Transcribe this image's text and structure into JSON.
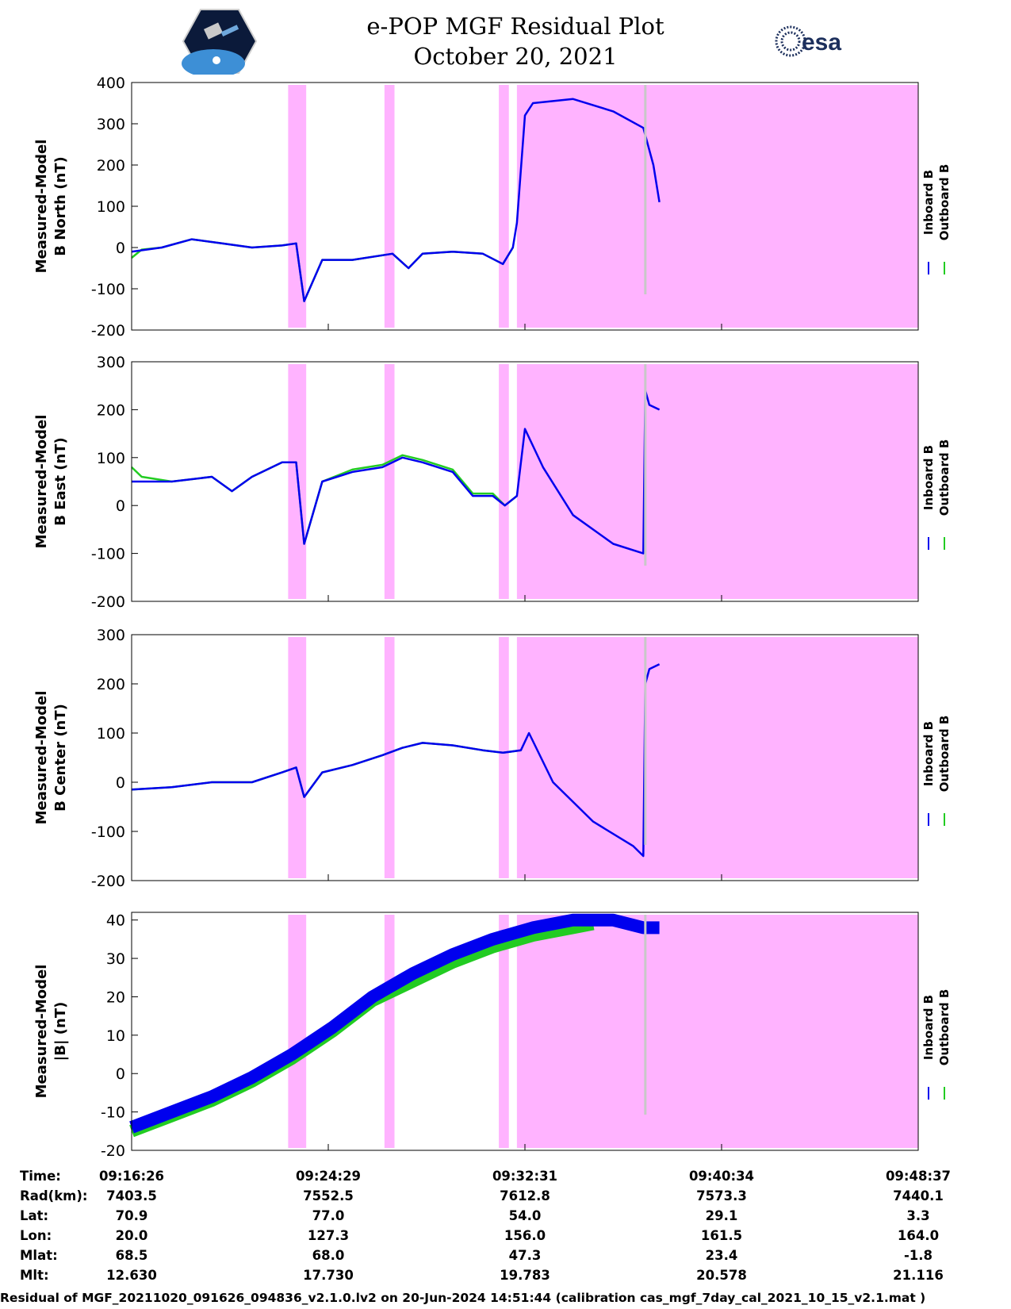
{
  "title": "e-POP MGF Residual Plot",
  "subtitle": "October 20, 2021",
  "logos": {
    "left": "cassiope-mission-logo",
    "right_text": "esa"
  },
  "colors": {
    "inboard": "#0000ee",
    "outboard": "#22cc22",
    "shade": "#ffb3ff",
    "gap_line": "#c8c8c8"
  },
  "chart_data": [
    {
      "type": "line",
      "ylabel": [
        "Measured-Model",
        "B North (nT)"
      ],
      "ylim": [
        -200,
        400
      ],
      "yticks": [
        -200,
        -100,
        0,
        100,
        200,
        300,
        400
      ],
      "legend": [
        "Inboard B",
        "Outboard B"
      ],
      "legend_placement": "right",
      "series": [
        {
          "name": "Inboard B",
          "x": [
            0,
            1.5,
            3,
            4.5,
            6,
            7.5,
            8.2,
            8.6,
            9.5,
            11,
            13,
            13.8,
            14.5,
            16,
            17.5,
            18.5,
            19,
            19.2,
            19.6,
            20,
            22,
            24,
            25.5,
            26,
            26.3
          ],
          "y": [
            -10,
            0,
            20,
            10,
            0,
            5,
            10,
            -130,
            -30,
            -30,
            -15,
            -50,
            -15,
            -10,
            -15,
            -40,
            0,
            60,
            320,
            350,
            360,
            330,
            290,
            200,
            110
          ]
        },
        {
          "name": "Outboard B",
          "x": [
            0,
            0.5,
            1.5,
            3,
            4.5,
            6,
            7.5,
            8.2,
            8.6,
            9.5,
            11,
            13,
            13.8,
            14.5,
            16,
            17.5,
            18.5,
            19
          ],
          "y": [
            -25,
            -5,
            0,
            20,
            10,
            0,
            5,
            10,
            -130,
            -30,
            -30,
            -15,
            -50,
            -15,
            -10,
            -15,
            -40,
            0
          ]
        }
      ]
    },
    {
      "type": "line",
      "ylabel": [
        "Measured-Model",
        "B East (nT)"
      ],
      "ylim": [
        -200,
        300
      ],
      "yticks": [
        -200,
        -100,
        0,
        100,
        200,
        300
      ],
      "legend": [
        "Inboard B",
        "Outboard B"
      ],
      "legend_placement": "right",
      "series": [
        {
          "name": "Inboard B",
          "x": [
            0,
            2,
            4,
            5,
            6,
            7.5,
            8.2,
            8.6,
            9.5,
            11,
            12.5,
            13.5,
            14.5,
            16,
            17,
            18,
            18.6,
            19.2,
            19.6,
            20.5,
            22,
            24,
            25.5,
            25.6,
            25.8,
            26.3
          ],
          "y": [
            50,
            50,
            60,
            30,
            60,
            90,
            90,
            -80,
            50,
            70,
            80,
            100,
            90,
            70,
            20,
            20,
            0,
            20,
            160,
            80,
            -20,
            -80,
            -100,
            240,
            210,
            200
          ]
        },
        {
          "name": "Outboard B",
          "x": [
            0,
            0.5,
            2,
            4,
            5,
            6,
            7.5,
            8.2,
            8.6,
            9.5,
            11,
            12.5,
            13.5,
            14.5,
            16,
            17,
            18,
            18.6,
            19.2
          ],
          "y": [
            80,
            60,
            50,
            60,
            30,
            60,
            90,
            90,
            -80,
            50,
            75,
            85,
            105,
            95,
            75,
            25,
            25,
            0,
            20
          ]
        }
      ]
    },
    {
      "type": "line",
      "ylabel": [
        "Measured-Model",
        "B Center (nT)"
      ],
      "ylim": [
        -200,
        300
      ],
      "yticks": [
        -200,
        -100,
        0,
        100,
        200,
        300
      ],
      "legend": [
        "Inboard B",
        "Outboard B"
      ],
      "legend_placement": "right",
      "series": [
        {
          "name": "Inboard B",
          "x": [
            0,
            2,
            4,
            6,
            7.5,
            8.2,
            8.6,
            9.5,
            11,
            12.5,
            13.5,
            14.5,
            16,
            17.5,
            18.5,
            19.4,
            19.8,
            21,
            23,
            25,
            25.5,
            25.6,
            25.8,
            26.3
          ],
          "y": [
            -15,
            -10,
            0,
            0,
            20,
            30,
            -30,
            20,
            35,
            55,
            70,
            80,
            75,
            65,
            60,
            65,
            100,
            0,
            -80,
            -130,
            -150,
            200,
            230,
            240
          ]
        },
        {
          "name": "Outboard B",
          "x": [
            0,
            2,
            4,
            6,
            7.5,
            8.2,
            8.6,
            9.5,
            11,
            12.5,
            13.5,
            14.5,
            16,
            17.5,
            18.5,
            19.4
          ],
          "y": [
            -15,
            -10,
            0,
            0,
            20,
            30,
            -30,
            20,
            35,
            55,
            70,
            80,
            75,
            65,
            60,
            65
          ]
        }
      ]
    },
    {
      "type": "line",
      "ylabel": [
        "Measured-Model",
        "|B| (nT)"
      ],
      "ylim": [
        -20,
        42
      ],
      "yticks": [
        -20,
        -10,
        0,
        10,
        20,
        30,
        40
      ],
      "legend": [
        "Inboard B",
        "Outboard B"
      ],
      "legend_placement": "right",
      "series": [
        {
          "name": "Inboard B",
          "x": [
            0,
            2,
            4,
            6,
            8,
            10,
            12,
            14,
            16,
            18,
            20,
            22,
            24,
            25.5,
            26.3
          ],
          "y": [
            -14,
            -10,
            -6,
            -1,
            5,
            12,
            20,
            26,
            31,
            35,
            38,
            40,
            40,
            38,
            38
          ]
        },
        {
          "name": "Outboard B",
          "x": [
            0,
            2,
            4,
            6,
            8,
            10,
            12,
            14,
            16,
            18,
            20,
            22,
            23
          ],
          "y": [
            -15,
            -11,
            -7,
            -2,
            4,
            11,
            19,
            24,
            29,
            33,
            36,
            38,
            39
          ]
        }
      ]
    }
  ],
  "shaded_intervals": [
    [
      7.8,
      8.7
    ],
    [
      12.6,
      13.1
    ],
    [
      18.3,
      18.8
    ],
    [
      19.2,
      39.2
    ]
  ],
  "gap_line_x": 25.6,
  "x_axis": {
    "min": 0,
    "max": 39.2,
    "rows": [
      {
        "label": "Time:",
        "values": [
          "09:16:26",
          "09:24:29",
          "09:32:31",
          "09:40:34",
          "09:48:37"
        ]
      },
      {
        "label": "Rad(km):",
        "values": [
          "7403.5",
          "7552.5",
          "7612.8",
          "7573.3",
          "7440.1"
        ]
      },
      {
        "label": "Lat:",
        "values": [
          "70.9",
          "77.0",
          "54.0",
          "29.1",
          "3.3"
        ]
      },
      {
        "label": "Lon:",
        "values": [
          "20.0",
          "127.3",
          "156.0",
          "161.5",
          "164.0"
        ]
      },
      {
        "label": "Mlat:",
        "values": [
          "68.5",
          "68.0",
          "47.3",
          "23.4",
          "-1.8"
        ]
      },
      {
        "label": "Mlt:",
        "values": [
          "12.630",
          "17.730",
          "19.783",
          "20.578",
          "21.116"
        ]
      }
    ],
    "tick_x": [
      0,
      9.8,
      19.6,
      29.4,
      39.2
    ]
  },
  "footer": "Residual of MGF_20211020_091626_094836_v2.1.0.lv2 on 20-Jun-2024 14:51:44 (calibration cas_mgf_7day_cal_2021_10_15_v2.1.mat )"
}
